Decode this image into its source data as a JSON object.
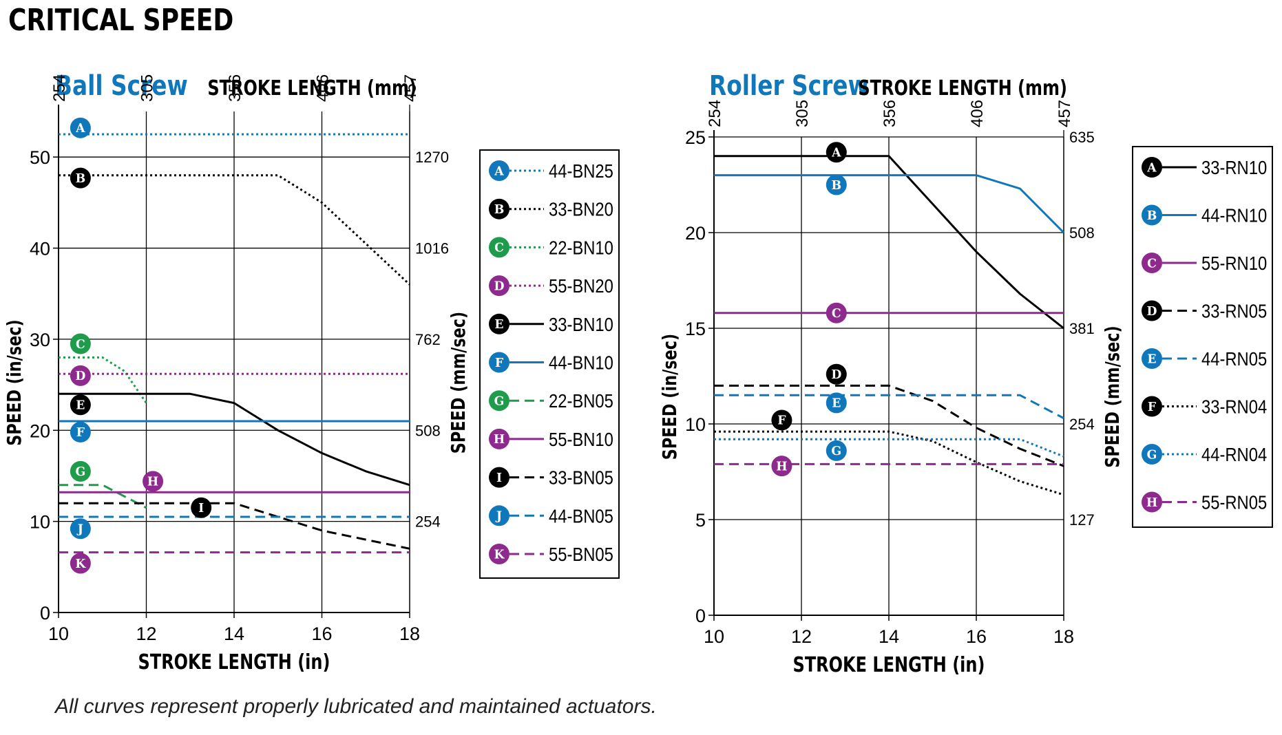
{
  "page": {
    "title": "CRITICAL SPEED",
    "footnote": "All curves represent properly lubricated and maintained actuators."
  },
  "colors": {
    "blue": "#1177bb",
    "black": "#000000",
    "green": "#1e9b4b",
    "purple": "#8e2a8e"
  },
  "chart_data": [
    {
      "type": "line",
      "title": "Ball Screw",
      "xlabel": "STROKE LENGTH (in)",
      "x2label": "STROKE LENGTH (mm)",
      "ylabel": "SPEED (in/sec)",
      "y2label": "SPEED (mm/sec)",
      "xlim": [
        10,
        18
      ],
      "ylim": [
        0,
        55
      ],
      "x_ticks": [
        "10",
        "12",
        "14",
        "16",
        "18"
      ],
      "x_tick_values": [
        10,
        12,
        14,
        16,
        18
      ],
      "y_ticks": [
        "0",
        "10",
        "20",
        "30",
        "40",
        "50"
      ],
      "y_tick_values": [
        0,
        10,
        20,
        30,
        40,
        50
      ],
      "x2_ticks": [
        "254",
        "305",
        "356",
        "406",
        "457"
      ],
      "x2_tick_values": [
        10,
        12,
        14,
        16,
        18
      ],
      "y2_ticks": [
        "254",
        "508",
        "762",
        "1016",
        "1270"
      ],
      "y2_tick_values": [
        10,
        20,
        30,
        40,
        50
      ],
      "grid": true,
      "legend": "right",
      "series": [
        {
          "letter": "A",
          "name": "44-BN25",
          "color": "blue",
          "dash": "dotted",
          "label_at": [
            10.5,
            53.2
          ],
          "x": [
            10,
            18
          ],
          "y": [
            52.5,
            52.5
          ]
        },
        {
          "letter": "B",
          "name": "33-BN20",
          "color": "black",
          "dash": "dotted",
          "label_at": [
            10.5,
            47.7
          ],
          "x": [
            10,
            15,
            16,
            18
          ],
          "y": [
            48,
            48,
            45,
            36
          ]
        },
        {
          "letter": "C",
          "name": "22-BN10",
          "color": "green",
          "dash": "dotted",
          "label_at": [
            10.5,
            29.5
          ],
          "x": [
            10,
            11,
            11.5,
            12
          ],
          "y": [
            28,
            28,
            26.5,
            23
          ]
        },
        {
          "letter": "D",
          "name": "55-BN20",
          "color": "purple",
          "dash": "dotted",
          "label_at": [
            10.5,
            26
          ],
          "x": [
            10,
            18
          ],
          "y": [
            26.2,
            26.2
          ]
        },
        {
          "letter": "E",
          "name": "33-BN10",
          "color": "black",
          "dash": "solid",
          "label_at": [
            10.5,
            22.8
          ],
          "x": [
            10,
            13,
            14,
            15,
            16,
            17,
            18
          ],
          "y": [
            24,
            24,
            23,
            20,
            17.5,
            15.5,
            14
          ]
        },
        {
          "letter": "F",
          "name": "44-BN10",
          "color": "blue",
          "dash": "solid",
          "label_at": [
            10.5,
            19.8
          ],
          "x": [
            10,
            18
          ],
          "y": [
            21,
            21
          ]
        },
        {
          "letter": "G",
          "name": "22-BN05",
          "color": "green",
          "dash": "dashed",
          "label_at": [
            10.5,
            15.5
          ],
          "x": [
            10,
            11,
            12
          ],
          "y": [
            14,
            14,
            11.5
          ]
        },
        {
          "letter": "H",
          "name": "55-BN10",
          "color": "purple",
          "dash": "solid",
          "label_at": [
            12.15,
            14.4
          ],
          "x": [
            10,
            18
          ],
          "y": [
            13.2,
            13.2
          ]
        },
        {
          "letter": "I",
          "name": "33-BN05",
          "color": "black",
          "dash": "dashed",
          "label_at": [
            13.25,
            11.5
          ],
          "x": [
            10,
            14,
            15,
            16,
            17,
            18
          ],
          "y": [
            12,
            12,
            10.5,
            9,
            8,
            7
          ]
        },
        {
          "letter": "J",
          "name": "44-BN05",
          "color": "blue",
          "dash": "dashed",
          "label_at": [
            10.5,
            9.2
          ],
          "x": [
            10,
            18
          ],
          "y": [
            10.5,
            10.5
          ]
        },
        {
          "letter": "K",
          "name": "55-BN05",
          "color": "purple",
          "dash": "dashed",
          "label_at": [
            10.5,
            5.4
          ],
          "x": [
            10,
            18
          ],
          "y": [
            6.6,
            6.6
          ]
        }
      ]
    },
    {
      "type": "line",
      "title": "Roller Screw",
      "xlabel": "STROKE LENGTH (in)",
      "x2label": "STROKE LENGTH (mm)",
      "ylabel": "SPEED (in/sec)",
      "y2label": "SPEED (mm/sec)",
      "xlim": [
        10,
        18
      ],
      "ylim": [
        0,
        25
      ],
      "x_ticks": [
        "10",
        "12",
        "14",
        "16",
        "18"
      ],
      "x_tick_values": [
        10,
        12,
        14,
        16,
        18
      ],
      "y_ticks": [
        "0",
        "5",
        "10",
        "15",
        "20",
        "25"
      ],
      "y_tick_values": [
        0,
        5,
        10,
        15,
        20,
        25
      ],
      "x2_ticks": [
        "254",
        "305",
        "356",
        "406",
        "457"
      ],
      "x2_tick_values": [
        10,
        12,
        14,
        16,
        18
      ],
      "y2_ticks": [
        "127",
        "254",
        "381",
        "508",
        "635"
      ],
      "y2_tick_values": [
        5,
        10,
        15,
        20,
        25
      ],
      "grid": true,
      "legend": "right",
      "series": [
        {
          "letter": "A",
          "name": "33-RN10",
          "color": "black",
          "dash": "solid",
          "label_at": [
            12.8,
            24.2
          ],
          "x": [
            10,
            14,
            15,
            16,
            17,
            18
          ],
          "y": [
            24,
            24,
            21.5,
            19,
            16.8,
            15
          ]
        },
        {
          "letter": "B",
          "name": "44-RN10",
          "color": "blue",
          "dash": "solid",
          "label_at": [
            12.8,
            22.5
          ],
          "x": [
            10,
            16,
            17,
            18
          ],
          "y": [
            23,
            23,
            22.3,
            20
          ]
        },
        {
          "letter": "C",
          "name": "55-RN10",
          "color": "purple",
          "dash": "solid",
          "label_at": [
            12.8,
            15.8
          ],
          "x": [
            10,
            18
          ],
          "y": [
            15.8,
            15.8
          ]
        },
        {
          "letter": "D",
          "name": "33-RN05",
          "color": "black",
          "dash": "dashed",
          "label_at": [
            12.8,
            12.6
          ],
          "x": [
            10,
            14,
            15,
            16,
            17,
            18
          ],
          "y": [
            12,
            12,
            11.2,
            9.8,
            8.7,
            7.8
          ]
        },
        {
          "letter": "E",
          "name": "44-RN05",
          "color": "blue",
          "dash": "dashed",
          "label_at": [
            12.8,
            11.1
          ],
          "x": [
            10,
            16.5,
            17,
            18
          ],
          "y": [
            11.5,
            11.5,
            11.5,
            10.3
          ]
        },
        {
          "letter": "F",
          "name": "33-RN04",
          "color": "black",
          "dash": "dotted",
          "label_at": [
            11.55,
            10.2
          ],
          "x": [
            10,
            14,
            15,
            16,
            17,
            18
          ],
          "y": [
            9.6,
            9.6,
            9.1,
            8,
            7,
            6.3
          ]
        },
        {
          "letter": "G",
          "name": "44-RN04",
          "color": "blue",
          "dash": "dotted",
          "label_at": [
            12.8,
            8.6
          ],
          "x": [
            10,
            17,
            18
          ],
          "y": [
            9.2,
            9.2,
            8.3
          ]
        },
        {
          "letter": "H",
          "name": "55-RN05",
          "color": "purple",
          "dash": "dashed",
          "label_at": [
            11.55,
            7.8
          ],
          "x": [
            10,
            18
          ],
          "y": [
            7.9,
            7.9
          ]
        }
      ]
    }
  ]
}
